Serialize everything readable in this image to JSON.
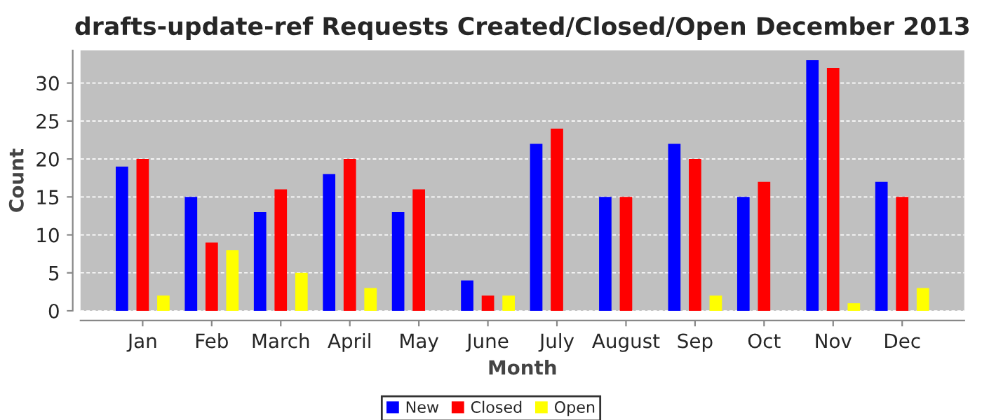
{
  "chart_data": {
    "type": "bar",
    "title": "drafts-update-ref Requests Created/Closed/Open December 2013",
    "xlabel": "Month",
    "ylabel": "Count",
    "categories": [
      "Jan",
      "Feb",
      "March",
      "April",
      "May",
      "June",
      "July",
      "August",
      "Sep",
      "Oct",
      "Nov",
      "Dec"
    ],
    "series": [
      {
        "name": "New",
        "color": "#0000ff",
        "values": [
          19,
          15,
          13,
          18,
          13,
          4,
          22,
          15,
          22,
          15,
          33,
          17
        ]
      },
      {
        "name": "Closed",
        "color": "#ff0000",
        "values": [
          20,
          9,
          16,
          20,
          16,
          2,
          24,
          15,
          20,
          17,
          32,
          15
        ]
      },
      {
        "name": "Open",
        "color": "#ffff00",
        "values": [
          2,
          8,
          5,
          3,
          0,
          2,
          0,
          0,
          2,
          0,
          1,
          3
        ]
      }
    ],
    "ylim": [
      0,
      34.3
    ],
    "yticks": [
      0,
      5,
      10,
      15,
      20,
      25,
      30
    ],
    "grid": "y",
    "legend": "bottom"
  }
}
